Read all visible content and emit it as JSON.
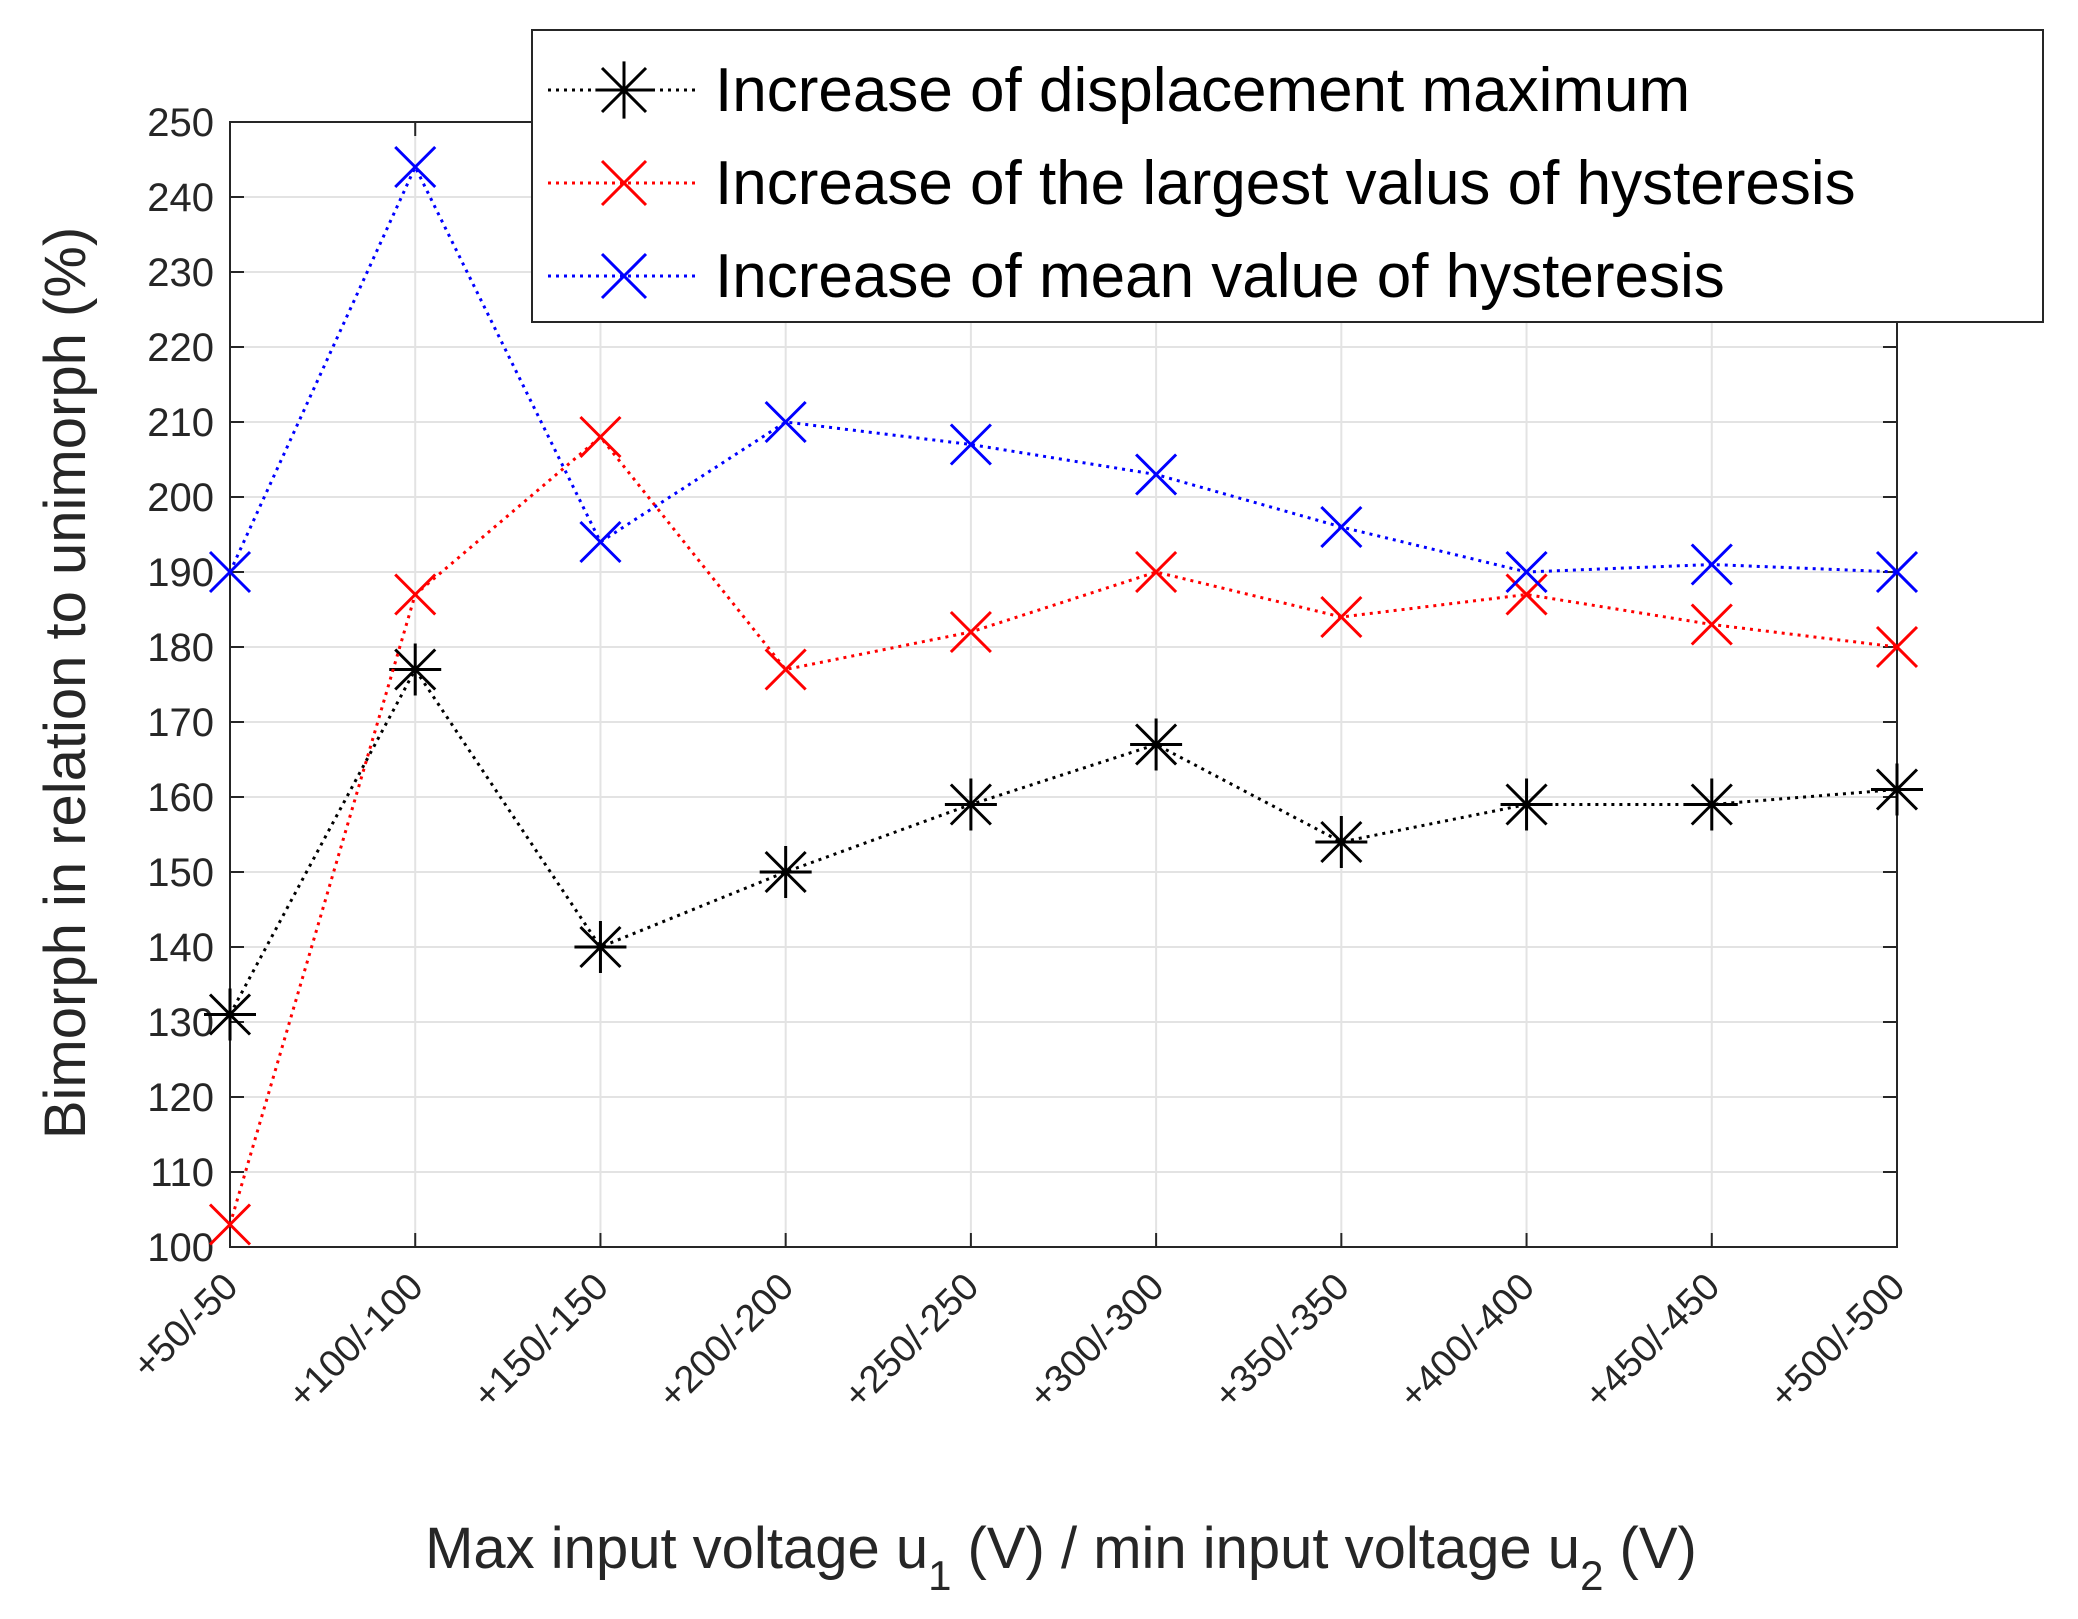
{
  "chart_data": {
    "type": "line",
    "title": "",
    "xlabel": {
      "prefix": "Max input voltage u",
      "sub1": "1",
      "middle": " (V) / min input voltage u",
      "sub2": "2",
      "suffix": " (V)"
    },
    "ylabel": "Bimorph in relation to unimorph (%)",
    "ylim": [
      100,
      250
    ],
    "yticks": [
      100,
      110,
      120,
      130,
      140,
      150,
      160,
      170,
      180,
      190,
      200,
      210,
      220,
      230,
      240,
      250
    ],
    "grid": true,
    "legend_position": "top-right",
    "categories": [
      "+50/-50",
      "+100/-100",
      "+150/-150",
      "+200/-200",
      "+250/-250",
      "+300/-300",
      "+350/-350",
      "+400/-400",
      "+450/-450",
      "+500/-500"
    ],
    "series": [
      {
        "name": "Increase of displacement maximum",
        "color": "#000000",
        "marker": "asterisk",
        "line_style": "dotted",
        "values": [
          131,
          177,
          140,
          150,
          159,
          167,
          154,
          159,
          159,
          161
        ]
      },
      {
        "name": "Increase of the largest valus of hysteresis",
        "color": "#ff0000",
        "marker": "x",
        "line_style": "dotted",
        "values": [
          103,
          187,
          208,
          177,
          182,
          190,
          184,
          187,
          183,
          180
        ]
      },
      {
        "name": "Increase of mean value of hysteresis",
        "color": "#0000ff",
        "marker": "x",
        "line_style": "dotted",
        "values": [
          190,
          244,
          194,
          210,
          207,
          203,
          196,
          190,
          191,
          190
        ]
      }
    ]
  }
}
